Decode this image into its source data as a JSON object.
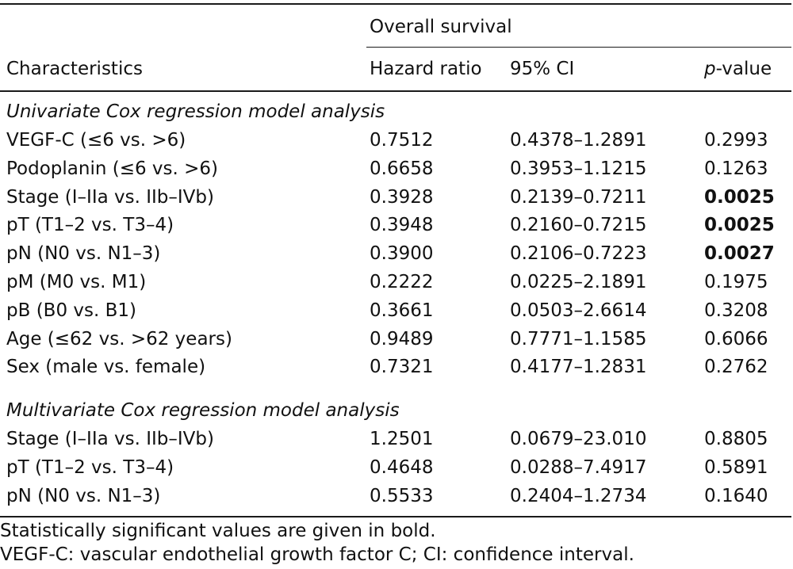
{
  "header": {
    "group_title": "Overall survival",
    "characteristics": "Characteristics",
    "hazard_ratio": "Hazard ratio",
    "ci": "95% CI",
    "pvalue_italic": "p",
    "pvalue_rest": "-value"
  },
  "sections": [
    {
      "title": "Univariate Cox regression model analysis",
      "rows": [
        {
          "label": "VEGF-C (≤6 vs. >6)",
          "hr": "0.7512",
          "ci": "0.4378–1.2891",
          "p": "0.2993",
          "bold": false
        },
        {
          "label": "Podoplanin (≤6 vs. >6)",
          "hr": "0.6658",
          "ci": "0.3953–1.1215",
          "p": "0.1263",
          "bold": false
        },
        {
          "label": "Stage (I–IIa vs. IIb–IVb)",
          "hr": "0.3928",
          "ci": "0.2139–0.7211",
          "p": "0.0025",
          "bold": true
        },
        {
          "label": "pT (T1–2 vs. T3–4)",
          "hr": "0.3948",
          "ci": "0.2160–0.7215",
          "p": "0.0025",
          "bold": true
        },
        {
          "label": "pN (N0 vs. N1–3)",
          "hr": "0.3900",
          "ci": "0.2106–0.7223",
          "p": "0.0027",
          "bold": true
        },
        {
          "label": "pM (M0 vs. M1)",
          "hr": "0.2222",
          "ci": "0.0225–2.1891",
          "p": "0.1975",
          "bold": false
        },
        {
          "label": "pB (B0 vs. B1)",
          "hr": "0.3661",
          "ci": "0.0503–2.6614",
          "p": "0.3208",
          "bold": false
        },
        {
          "label": "Age (≤62 vs. >62 years)",
          "hr": "0.9489",
          "ci": "0.7771–1.1585",
          "p": "0.6066",
          "bold": false
        },
        {
          "label": "Sex (male vs. female)",
          "hr": "0.7321",
          "ci": "0.4177–1.2831",
          "p": "0.2762",
          "bold": false
        }
      ]
    },
    {
      "title": "Multivariate Cox regression model analysis",
      "rows": [
        {
          "label": "Stage (I–IIa vs. IIb–IVb)",
          "hr": "1.2501",
          "ci": "0.0679–23.010",
          "p": "0.8805",
          "bold": false
        },
        {
          "label": "pT (T1–2 vs. T3–4)",
          "hr": "0.4648",
          "ci": "0.0288–7.4917",
          "p": "0.5891",
          "bold": false
        },
        {
          "label": "pN (N0 vs. N1–3)",
          "hr": "0.5533",
          "ci": "0.2404–1.2734",
          "p": "0.1640",
          "bold": false
        }
      ]
    }
  ],
  "footnotes": [
    "Statistically significant values are given in bold.",
    "VEGF-C: vascular endothelial growth factor C; CI: confidence interval."
  ]
}
